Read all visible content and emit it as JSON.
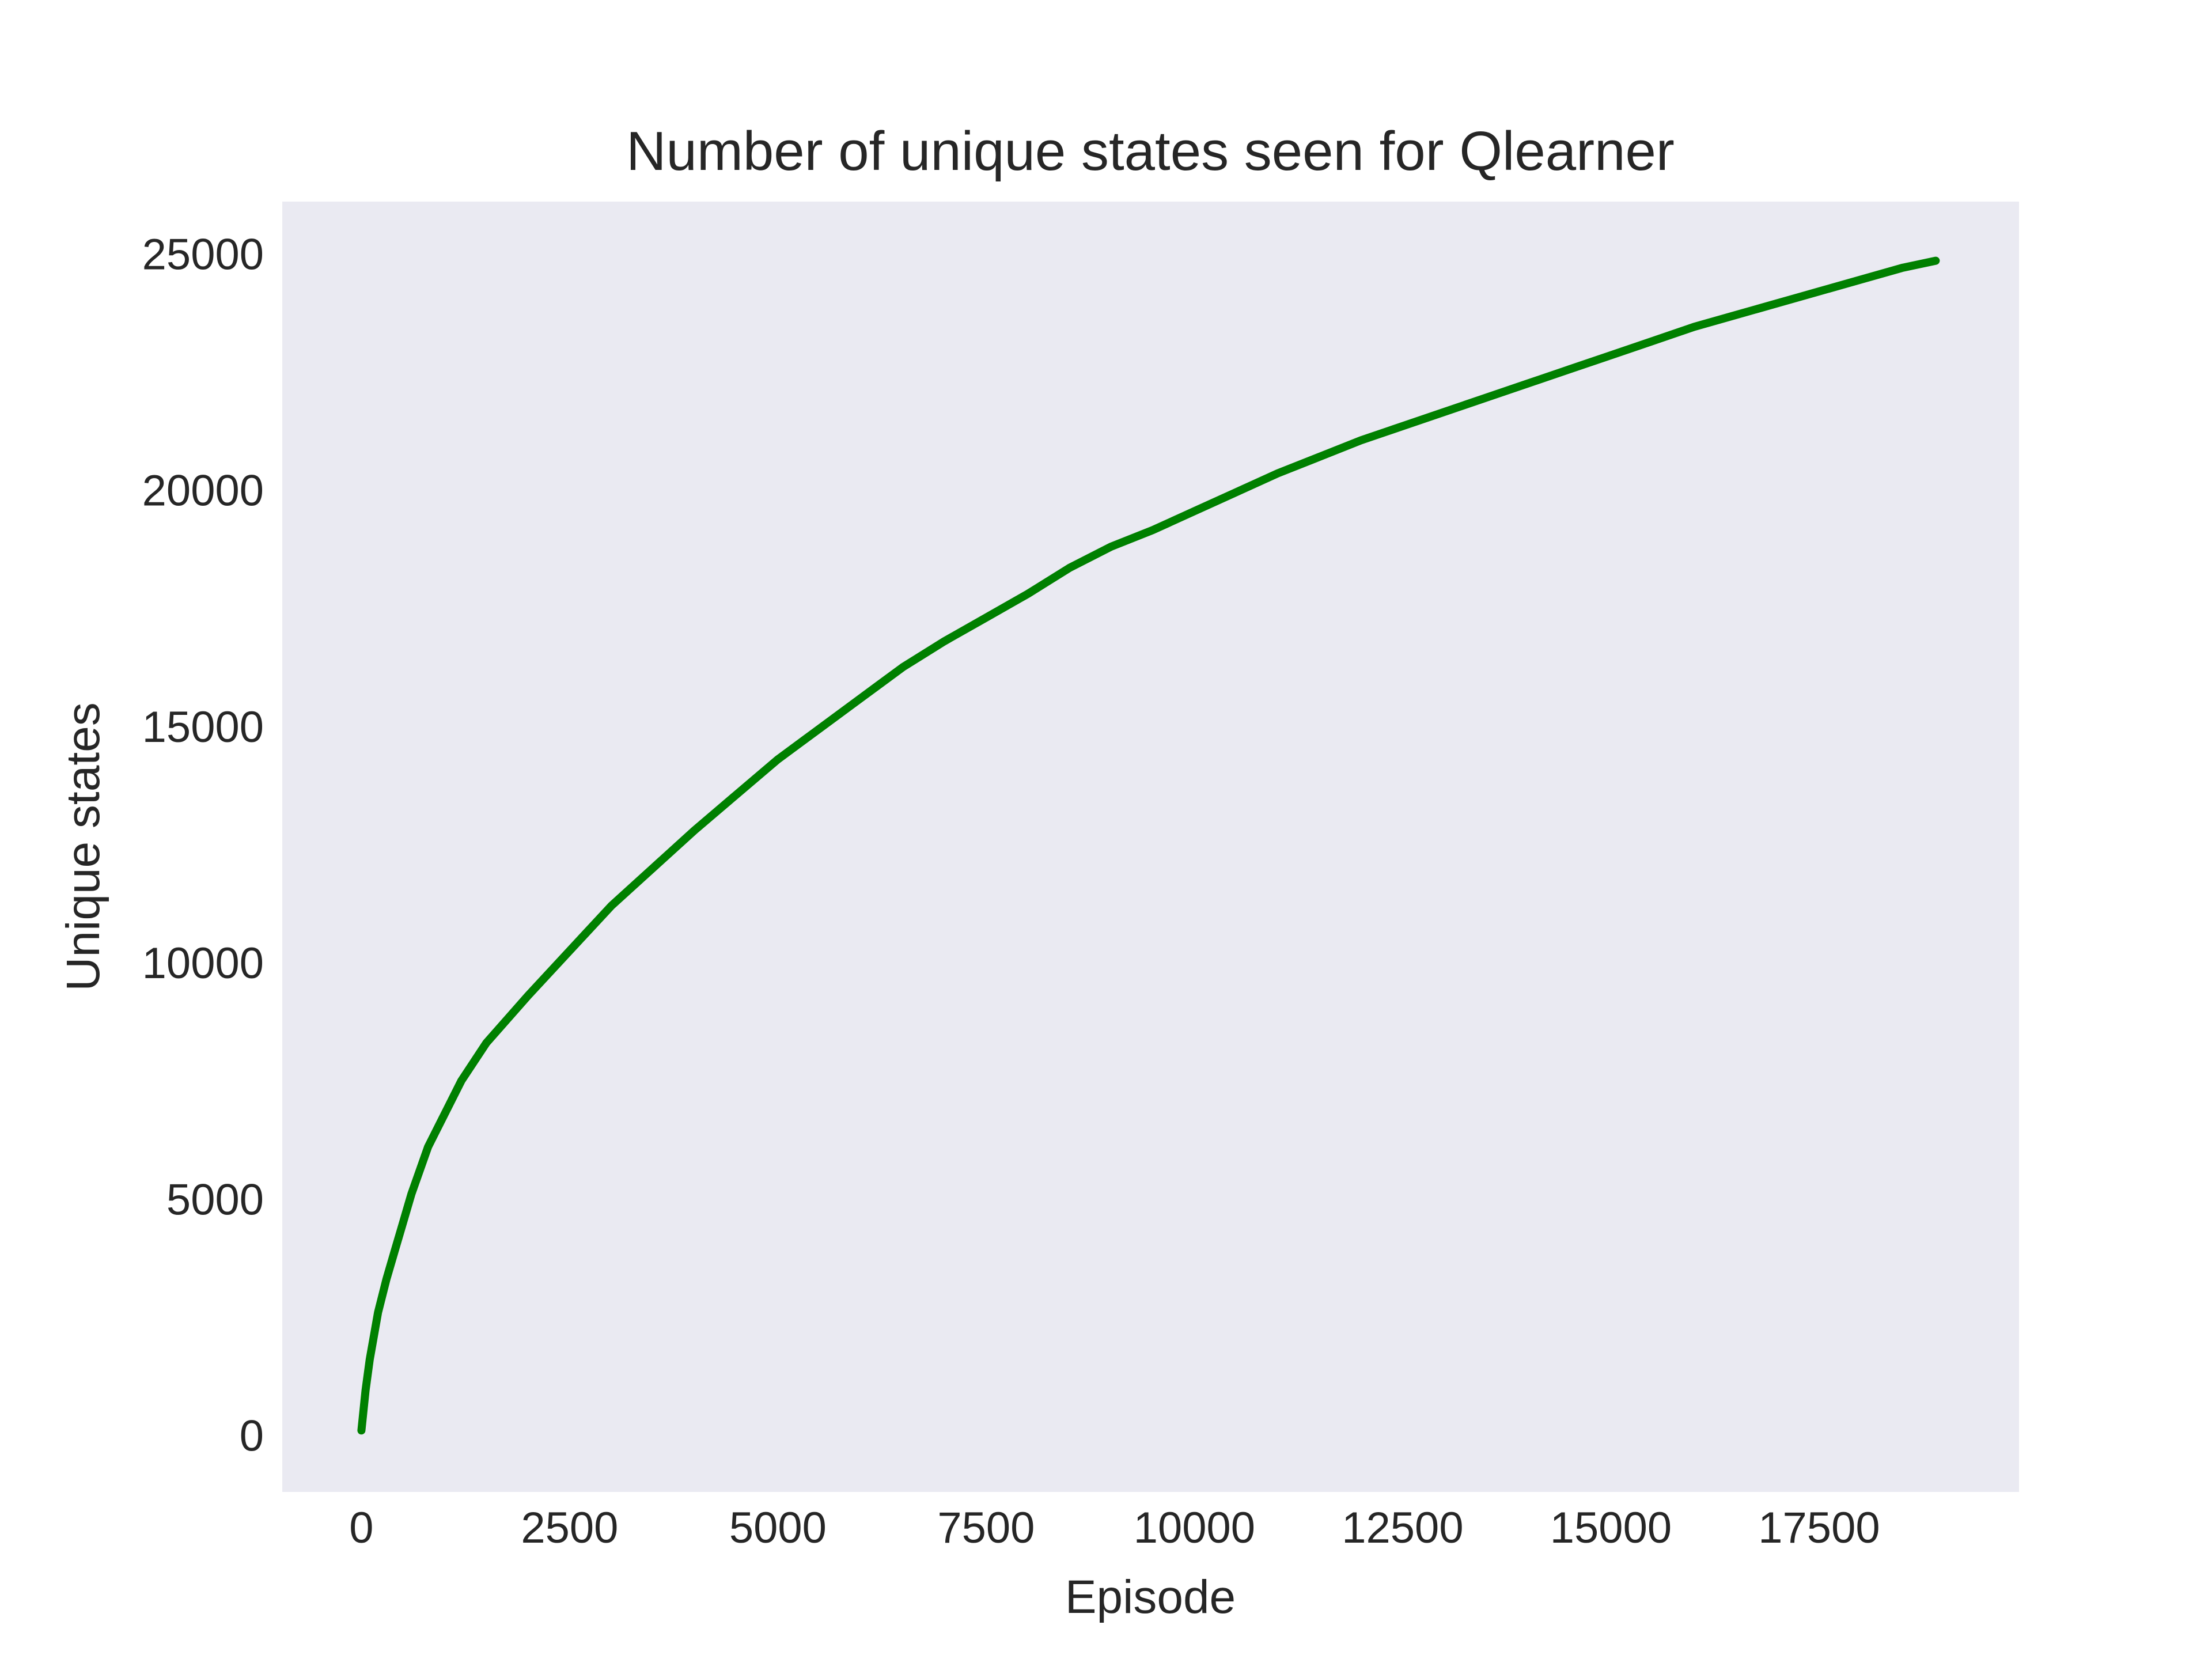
{
  "chart_data": {
    "type": "line",
    "title": "Number of unique states seen for Qlearner",
    "xlabel": "Episode",
    "ylabel": "Unique states",
    "xlim": [
      -950,
      19900
    ],
    "ylim": [
      -1200,
      26100
    ],
    "x_ticks": [
      0,
      2500,
      5000,
      7500,
      10000,
      12500,
      15000,
      17500
    ],
    "y_ticks": [
      0,
      5000,
      10000,
      15000,
      20000,
      25000
    ],
    "grid": false,
    "series": [
      {
        "color": "#008000",
        "x": [
          0,
          50,
          100,
          200,
          300,
          400,
          500,
          600,
          800,
          1000,
          1200,
          1500,
          2000,
          2500,
          3000,
          3500,
          4000,
          4500,
          5000,
          5500,
          6000,
          6500,
          7000,
          7500,
          8000,
          8500,
          9000,
          9500,
          10000,
          10500,
          11000,
          11500,
          12000,
          12500,
          13000,
          13500,
          14000,
          14500,
          15000,
          15500,
          16000,
          16500,
          17000,
          17500,
          18000,
          18500,
          18900
        ],
        "y": [
          100,
          950,
          1600,
          2600,
          3300,
          3900,
          4500,
          5100,
          6100,
          6800,
          7500,
          8300,
          9300,
          10250,
          11200,
          12000,
          12800,
          13550,
          14300,
          14950,
          15600,
          16250,
          16800,
          17300,
          17800,
          18350,
          18800,
          19150,
          19550,
          19950,
          20350,
          20700,
          21050,
          21350,
          21650,
          21950,
          22250,
          22550,
          22850,
          23150,
          23450,
          23700,
          23950,
          24200,
          24450,
          24700,
          24850
        ]
      }
    ]
  }
}
